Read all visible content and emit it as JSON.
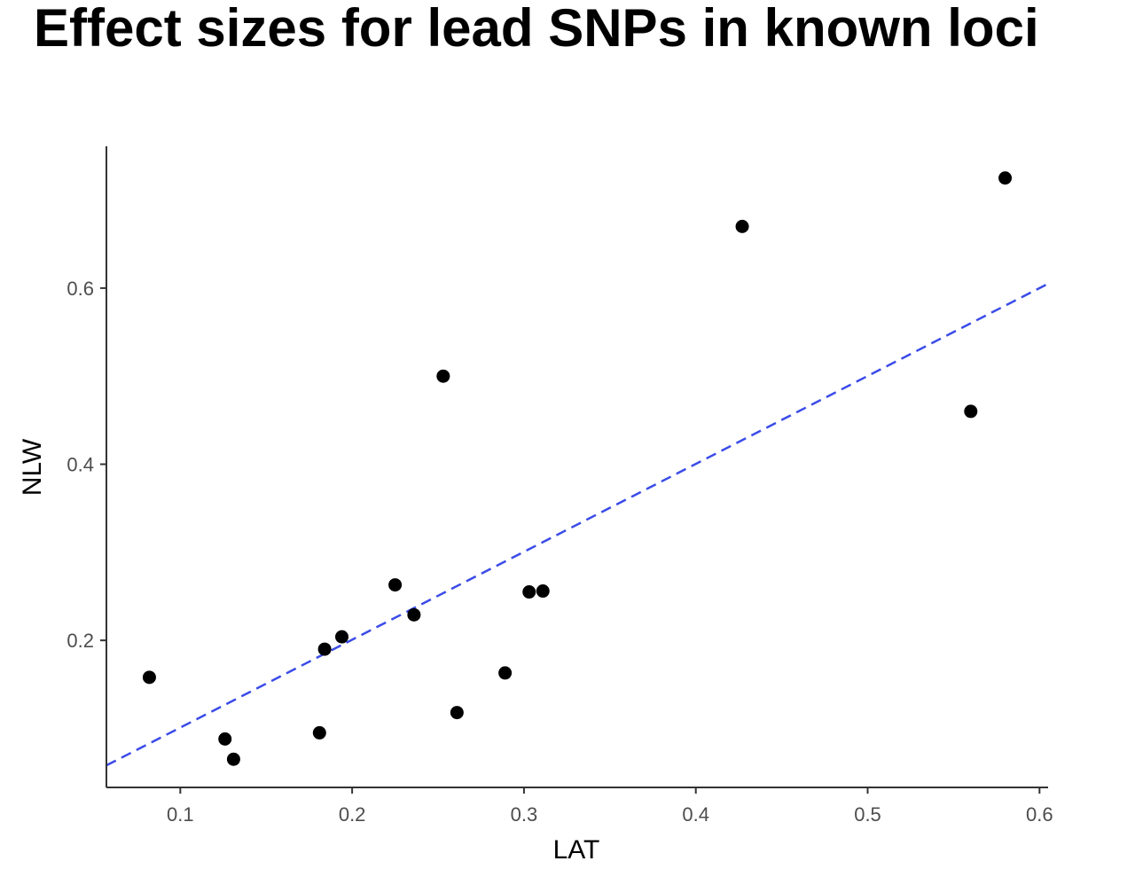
{
  "chart_data": {
    "type": "scatter",
    "title": "Effect sizes for lead SNPs in known loci",
    "xlabel": "LAT",
    "ylabel": "NLW",
    "xlim": [
      0.057,
      0.605
    ],
    "ylim": [
      0.033,
      0.761
    ],
    "x_ticks": [
      0.1,
      0.2,
      0.3,
      0.4,
      0.5,
      0.6
    ],
    "x_tick_labels": [
      "0.1",
      "0.2",
      "0.3",
      "0.4",
      "0.5",
      "0.6"
    ],
    "y_ticks": [
      0.2,
      0.4,
      0.6
    ],
    "y_tick_labels": [
      "0.2",
      "0.4",
      "0.6"
    ],
    "grid": false,
    "colors": {
      "points": "#000000",
      "trend_line": "#3b4ce8",
      "axis": "#333333"
    },
    "points": [
      {
        "x": 0.082,
        "y": 0.158
      },
      {
        "x": 0.126,
        "y": 0.088
      },
      {
        "x": 0.131,
        "y": 0.065
      },
      {
        "x": 0.181,
        "y": 0.095
      },
      {
        "x": 0.184,
        "y": 0.19
      },
      {
        "x": 0.194,
        "y": 0.204
      },
      {
        "x": 0.225,
        "y": 0.263
      },
      {
        "x": 0.236,
        "y": 0.229
      },
      {
        "x": 0.253,
        "y": 0.5
      },
      {
        "x": 0.261,
        "y": 0.118
      },
      {
        "x": 0.289,
        "y": 0.163
      },
      {
        "x": 0.303,
        "y": 0.255
      },
      {
        "x": 0.311,
        "y": 0.256
      },
      {
        "x": 0.427,
        "y": 0.67
      },
      {
        "x": 0.56,
        "y": 0.46
      },
      {
        "x": 0.58,
        "y": 0.725
      }
    ],
    "trend_line": {
      "style": "dashed",
      "x": [
        0.057,
        0.605
      ],
      "y": [
        0.058,
        0.605
      ]
    }
  }
}
